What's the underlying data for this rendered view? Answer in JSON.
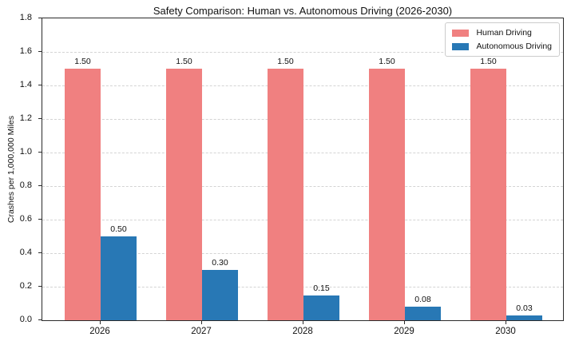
{
  "chart_data": {
    "type": "bar",
    "title": "Safety Comparison: Human vs. Autonomous Driving (2026-2030)",
    "xlabel": "",
    "ylabel": "Crashes per 1,000,000 Miles",
    "categories": [
      "2026",
      "2027",
      "2028",
      "2029",
      "2030"
    ],
    "series": [
      {
        "name": "Human Driving",
        "color": "#F08080",
        "values": [
          1.5,
          1.5,
          1.5,
          1.5,
          1.5
        ],
        "value_labels": [
          "1.50",
          "1.50",
          "1.50",
          "1.50",
          "1.50"
        ]
      },
      {
        "name": "Autonomous Driving",
        "color": "#2878B5",
        "values": [
          0.5,
          0.3,
          0.15,
          0.08,
          0.03
        ],
        "value_labels": [
          "0.50",
          "0.30",
          "0.15",
          "0.08",
          "0.03"
        ]
      }
    ],
    "ylim": [
      0,
      1.8
    ],
    "ytick_labels": [
      "0.0",
      "0.2",
      "0.4",
      "0.6",
      "0.8",
      "1.0",
      "1.2",
      "1.4",
      "1.6",
      "1.8"
    ],
    "grid": "horizontal-dashed",
    "legend_position": "upper-right",
    "colors": {
      "grid": "#d4d4d4",
      "axis": "#2b2b2b",
      "text": "#111111",
      "background": "#ffffff"
    }
  }
}
